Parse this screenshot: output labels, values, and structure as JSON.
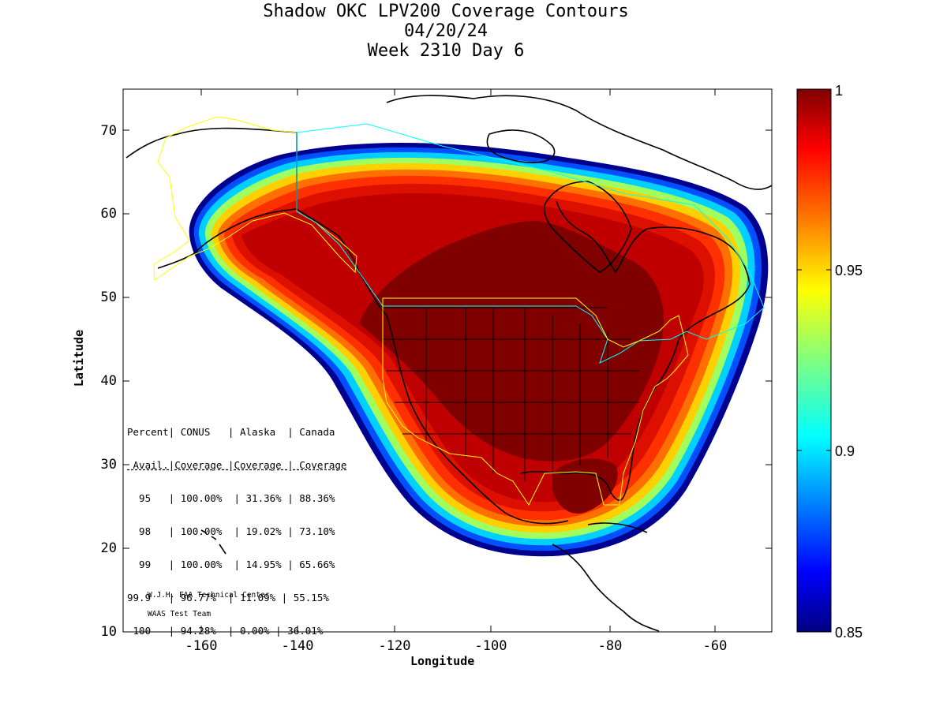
{
  "title_lines": [
    "Shadow OKC LPV200 Coverage Contours",
    "04/20/24",
    "Week 2310 Day 6"
  ],
  "axes": {
    "xlabel": "Longitude",
    "ylabel": "Latitude",
    "x_ticks": [
      "-160",
      "-140",
      "-120",
      "-100",
      "-80",
      "-60"
    ],
    "y_ticks": [
      "10",
      "20",
      "30",
      "40",
      "50",
      "60",
      "70"
    ]
  },
  "colorbar": {
    "ticks": [
      "1",
      "0.95",
      "0.9",
      "0.85"
    ],
    "range": [
      0.85,
      1.0
    ],
    "colormap": "jet"
  },
  "table": {
    "header1": "Percent| CONUS   | Alaska  | Canada",
    "header2": " Avail.|Coverage |Coverage | Coverage",
    "rows": [
      "  95   | 100.00%  | 31.36% | 88.36%",
      "  98   | 100.00%  | 19.02% | 73.10%",
      "  99   | 100.00%  | 14.95% | 65.66%",
      "99.9   | 96.77%  | 11.09% | 55.15%",
      " 100   | 94.28%  | 0.00% | 36.01%"
    ]
  },
  "credit_lines": [
    "W.J.H. FAA Technical Center",
    "WAAS Test Team"
  ],
  "colors": {
    "max": "#800000",
    "high": "#cc0000",
    "mid": "#ffff00",
    "low": "#00ccff",
    "min": "#000080",
    "alaska_boundary": "#ffff00",
    "canada_boundary": "#00ffff",
    "conus_boundary": "#ffff00"
  }
}
